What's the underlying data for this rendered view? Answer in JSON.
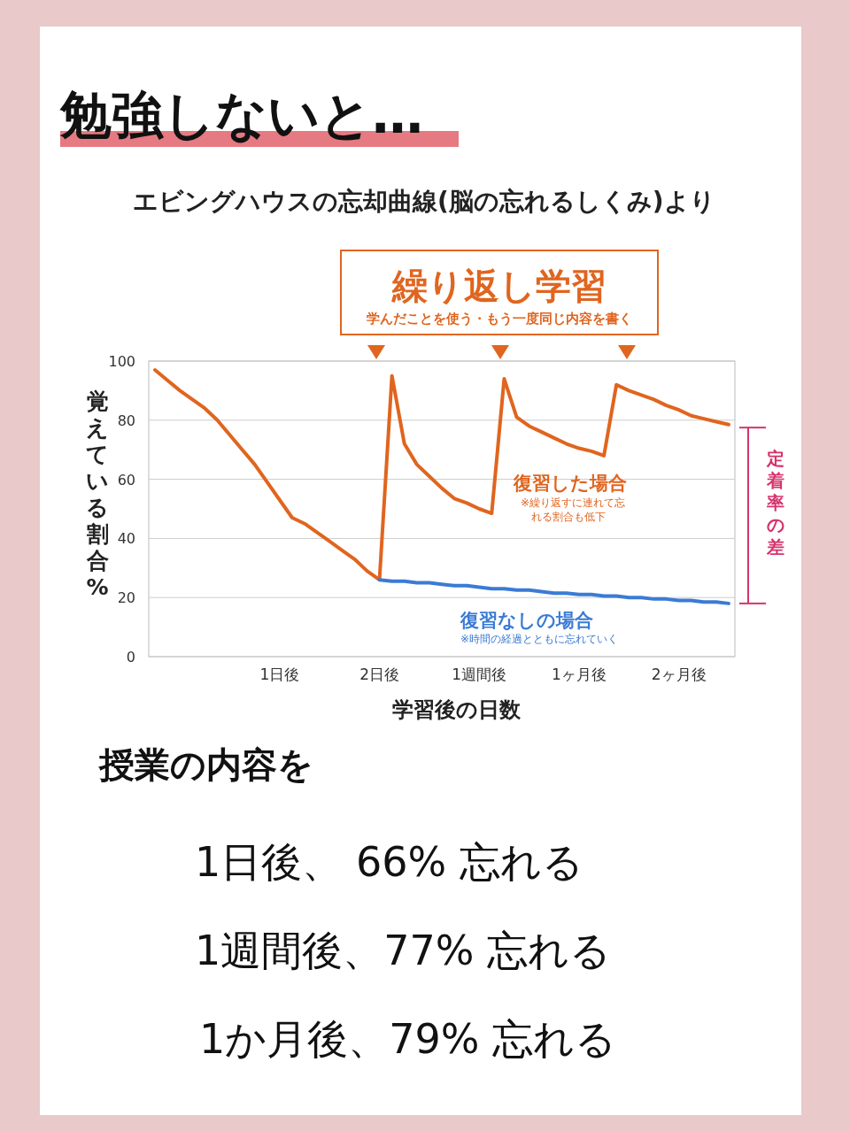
{
  "chart_data": {
    "type": "line",
    "title": "勉強しないと…",
    "subtitle": "エビングハウスの忘却曲線(脳の忘れるしくみ)より",
    "ylabel": "覚えている割合%",
    "xlabel": "学習後の日数",
    "categories": [
      null,
      null,
      null,
      null,
      null,
      null,
      null,
      null,
      null,
      null,
      "1日後",
      null,
      null,
      null,
      null,
      null,
      null,
      null,
      "2日後",
      null,
      null,
      null,
      null,
      null,
      null,
      null,
      "1週間後",
      null,
      null,
      null,
      null,
      null,
      null,
      null,
      "1ヶ月後",
      null,
      null,
      null,
      null,
      null,
      null,
      null,
      "2ヶ月後",
      null,
      null,
      null,
      null
    ],
    "ylim": [
      0,
      100
    ],
    "yticks": [
      0,
      20,
      40,
      60,
      80,
      100
    ],
    "grid": "y",
    "series": [
      {
        "name": "復習した場合",
        "color": "#e0651f",
        "values": [
          97,
          93.5,
          90,
          87,
          84,
          80,
          75,
          70,
          65,
          59,
          53,
          47,
          45,
          42,
          39,
          36,
          33,
          29,
          26,
          95,
          72,
          65,
          61,
          57,
          53.5,
          52,
          50,
          48.5,
          94,
          81,
          78,
          76,
          74,
          72,
          70.5,
          69.5,
          68,
          92,
          90,
          88.5,
          87,
          85,
          83.5,
          81.5,
          80.5,
          79.5,
          78.5
        ]
      },
      {
        "name": "復習なしの場合",
        "color": "#3a7bd5",
        "values": [
          null,
          null,
          null,
          null,
          null,
          null,
          null,
          null,
          null,
          null,
          null,
          null,
          null,
          null,
          null,
          null,
          null,
          null,
          26,
          25.5,
          25.5,
          25,
          25,
          24.5,
          24,
          24,
          23.5,
          23,
          23,
          22.5,
          22.5,
          22,
          21.5,
          21.5,
          21,
          21,
          20.5,
          20.5,
          20,
          20,
          19.5,
          19.5,
          19,
          19,
          18.5,
          18.5,
          18
        ]
      }
    ],
    "annotations": [
      "繰り返し学習",
      "学んだことを使う・もう一度同じ内容を書く",
      "※繰り返すに連れて忘れる割合も低下",
      "※時間の経過とともに忘れていく",
      "定着率の差",
      "授業の内容を",
      "1日後、 66% 忘れる",
      "1週間後、77% 忘れる",
      "1か月後、79% 忘れる"
    ]
  }
}
